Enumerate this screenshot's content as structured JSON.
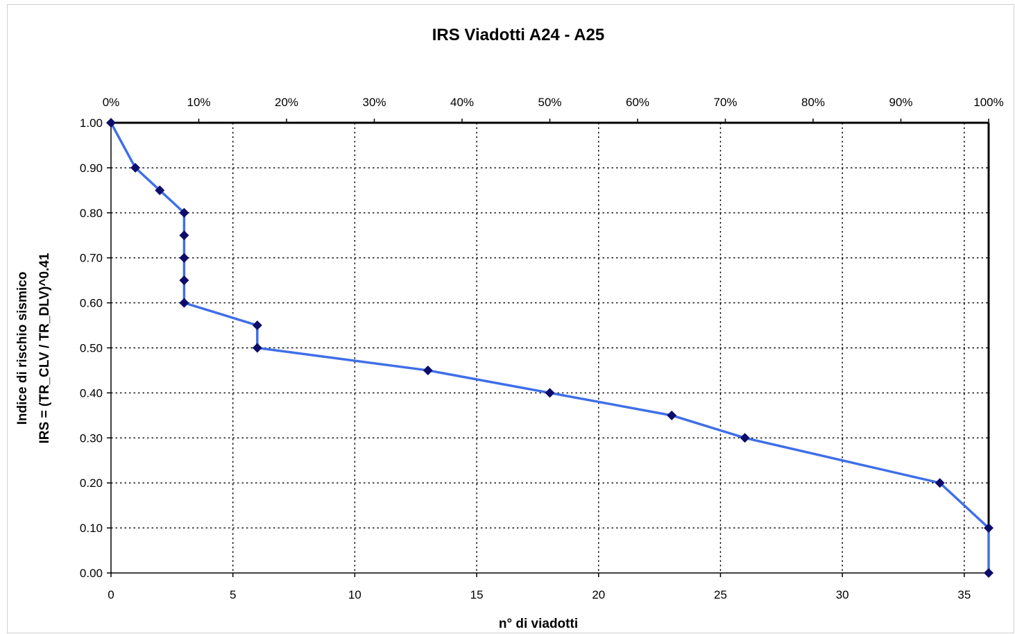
{
  "chart_data": {
    "type": "line",
    "title": "IRS Viadotti A24 - A25",
    "xlabel": "n° di viadotti",
    "ylabel_lines": [
      "Indice di rischio sismico",
      "IRS = (TR_CLV / TR_DLV)^0.41"
    ],
    "xlim": [
      0,
      36
    ],
    "ylim": [
      0,
      1
    ],
    "x_ticks": [
      "0",
      "5",
      "10",
      "15",
      "20",
      "25",
      "30",
      "35"
    ],
    "y_ticks": [
      "0.00",
      "0.10",
      "0.20",
      "0.30",
      "0.40",
      "0.50",
      "0.60",
      "0.70",
      "0.80",
      "0.90",
      "1.00"
    ],
    "secondary_x_ticks": [
      "0%",
      "10%",
      "20%",
      "30%",
      "40%",
      "50%",
      "60%",
      "70%",
      "80%",
      "90%",
      "100%"
    ],
    "grid": true,
    "series": [
      {
        "x": [
          0,
          1,
          2,
          3,
          3,
          3,
          3,
          3,
          6,
          6,
          13,
          18,
          23,
          26,
          34,
          36,
          36
        ],
        "y": [
          1.0,
          0.9,
          0.85,
          0.8,
          0.75,
          0.7,
          0.65,
          0.6,
          0.55,
          0.5,
          0.45,
          0.4,
          0.35,
          0.3,
          0.2,
          0.1,
          0.0
        ]
      }
    ],
    "colors": {
      "line": "#3f6fe8",
      "marker": "#0d0d6b",
      "axis": "#000000",
      "grid": "#000000"
    }
  }
}
